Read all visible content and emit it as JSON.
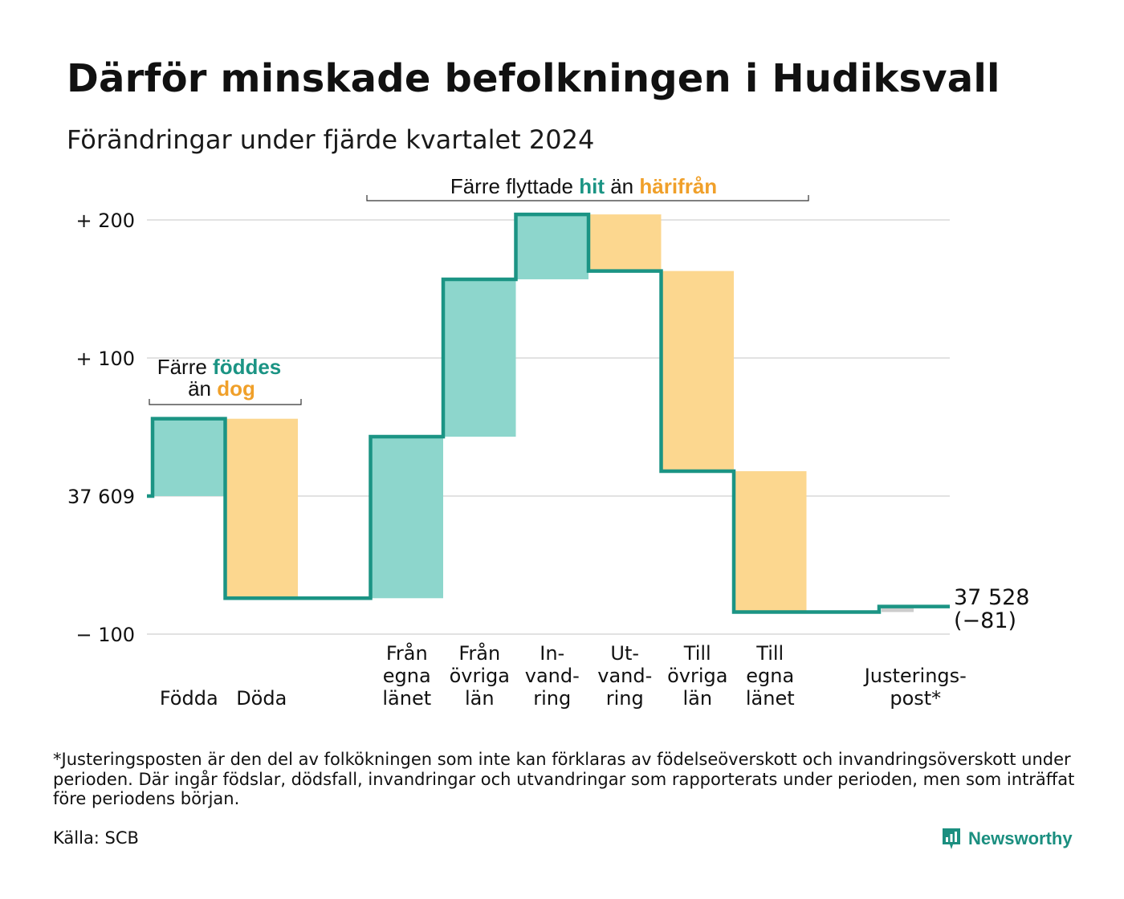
{
  "title": "Därför minskade befolkningen i Hudiksvall",
  "subtitle": "Förändringar under fjärde kvartalet 2024",
  "footnote": "*Justeringsposten är den del av folkökningen som inte kan förklaras av födelseöverskott och invandringsöverskott under perioden. Där ingår födslar, dödsfall, invandringar och utvandringar som rapporterats under perioden, men som inträffat före periodens början.",
  "source": "Källa: SCB",
  "brand": "Newsworthy",
  "colors": {
    "increase": "#8dd6cc",
    "decrease": "#fcd78f",
    "adjustment": "#cccccc",
    "line": "#1b9484",
    "teal_text": "#1b9484",
    "orange_text": "#f0a02a",
    "grid": "#e2e2e2"
  },
  "chart_data": {
    "type": "waterfall",
    "start_value": 37609,
    "end_value": 37528,
    "end_label_value": "37 528",
    "end_label_change": "(−81)",
    "y_ticks": [
      {
        "value": 200,
        "label": "+ 200"
      },
      {
        "value": 100,
        "label": "+ 100"
      },
      {
        "value": 0,
        "label": "37 609"
      },
      {
        "value": -100,
        "label": "− 100"
      }
    ],
    "ylim": [
      -100,
      200
    ],
    "items": [
      {
        "label": [
          "Födda"
        ],
        "change": 56
      },
      {
        "label": [
          "Döda"
        ],
        "change": -130
      },
      {
        "label": [],
        "change": 0
      },
      {
        "label": [
          "Från",
          "egna",
          "länet"
        ],
        "change": 117
      },
      {
        "label": [
          "Från",
          "övriga",
          "län"
        ],
        "change": 114
      },
      {
        "label": [
          "In-",
          "vand-",
          "ring"
        ],
        "change": 47
      },
      {
        "label": [
          "Ut-",
          "vand-",
          "ring"
        ],
        "change": -41
      },
      {
        "label": [
          "Till",
          "övriga",
          "län"
        ],
        "change": -145
      },
      {
        "label": [
          "Till",
          "egna",
          "länet"
        ],
        "change": -102
      },
      {
        "label": [],
        "change": 0
      },
      {
        "label": [
          "Justerings-",
          "post*"
        ],
        "change": 4
      }
    ],
    "annotations": [
      {
        "parts": [
          {
            "text": "Färre ",
            "style": "plain"
          },
          {
            "text": "föddes",
            "style": "teal"
          }
        ],
        "parts2": [
          {
            "text": "än ",
            "style": "plain"
          },
          {
            "text": "dog",
            "style": "orange"
          }
        ]
      },
      {
        "parts": [
          {
            "text": "Färre flyttade ",
            "style": "plain"
          },
          {
            "text": "hit",
            "style": "teal"
          },
          {
            "text": " än ",
            "style": "plain"
          },
          {
            "text": "härifrån",
            "style": "orange"
          }
        ]
      }
    ]
  }
}
